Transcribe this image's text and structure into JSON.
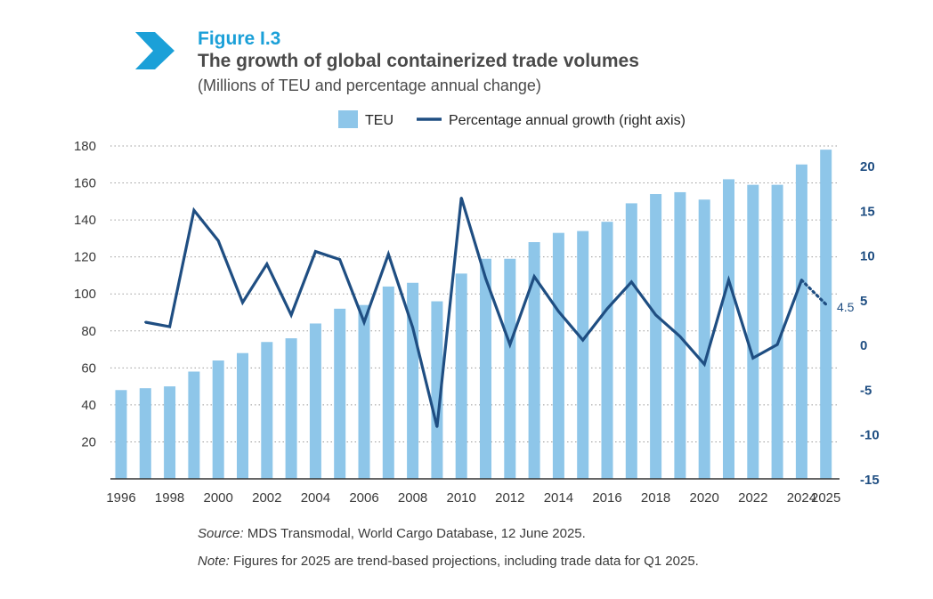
{
  "figure": {
    "label": "Figure I.3",
    "title": "The growth of global containerized trade volumes",
    "subtitle": "(Millions of TEU and percentage annual change)"
  },
  "colors": {
    "accent": "#1ba0d8",
    "bar": "#8ec6e9",
    "line": "#1f4e82",
    "grid": "#9a9a9a",
    "text": "#3a3a3a"
  },
  "chart_data": {
    "type": "bar+line",
    "categories": [
      "1996",
      "1997",
      "1998",
      "1999",
      "2000",
      "2001",
      "2002",
      "2003",
      "2004",
      "2005",
      "2006",
      "2007",
      "2008",
      "2009",
      "2010",
      "2011",
      "2012",
      "2013",
      "2014",
      "2015",
      "2016",
      "2017",
      "2018",
      "2019",
      "2020",
      "2021",
      "2022",
      "2023",
      "2024",
      "2025"
    ],
    "x_tick_labels": [
      "1996",
      "1998",
      "2000",
      "2002",
      "2004",
      "2006",
      "2008",
      "2010",
      "2012",
      "2014",
      "2016",
      "2018",
      "2020",
      "2022",
      "2024",
      "2025"
    ],
    "legend": {
      "bar": "TEU",
      "line": "Percentage annual growth (right axis)",
      "position": "top-center"
    },
    "series": [
      {
        "name": "TEU",
        "type": "bar",
        "axis": "left",
        "values": [
          48,
          49,
          50,
          58,
          64,
          68,
          74,
          76,
          84,
          92,
          94,
          104,
          106,
          96,
          111,
          119,
          119,
          128,
          133,
          134,
          139,
          149,
          154,
          155,
          151,
          162,
          159,
          159,
          170,
          178
        ]
      },
      {
        "name": "Percentage annual growth (right axis)",
        "type": "line",
        "axis": "right",
        "values": [
          null,
          2.5,
          2.0,
          15.0,
          11.6,
          4.7,
          9.0,
          3.3,
          10.4,
          9.5,
          2.5,
          10.1,
          1.9,
          -9.2,
          16.4,
          7.4,
          0.0,
          7.6,
          3.7,
          0.5,
          4.0,
          7.0,
          3.3,
          0.9,
          -2.2,
          7.2,
          -1.5,
          0.0,
          7.2,
          4.5
        ],
        "projected_from_index": 28
      }
    ],
    "left_axis": {
      "min": 0,
      "max": 180,
      "ticks": [
        20,
        40,
        60,
        80,
        100,
        120,
        140,
        160,
        180
      ]
    },
    "right_axis": {
      "min": -15,
      "max": 22.5,
      "ticks": [
        20,
        15,
        10,
        5,
        0,
        -5,
        -10,
        -15
      ]
    },
    "annotation": "4.5",
    "grid": true
  },
  "notes": {
    "source_label": "Source:",
    "source_text": " MDS Transmodal, World Cargo Database, 12 June 2025.",
    "note_label": "Note:",
    "note_text": " Figures for 2025 are trend-based projections, including trade data for Q1 2025."
  }
}
